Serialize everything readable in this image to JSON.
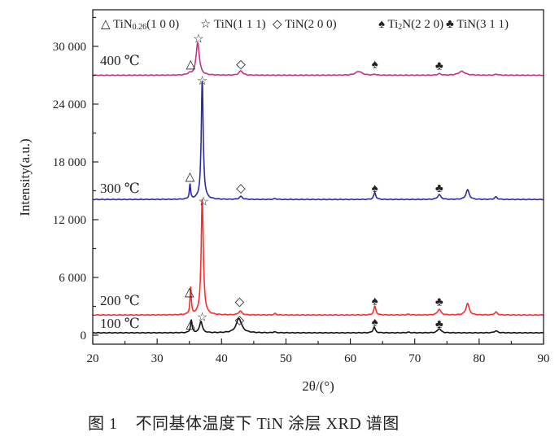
{
  "chart_data": {
    "type": "line",
    "title": "",
    "xlabel": "2θ/(°)",
    "ylabel": "Intensity(a.u.)",
    "xlim": [
      20,
      90
    ],
    "ylim": [
      -930,
      33800
    ],
    "x_ticks": [
      20,
      30,
      40,
      50,
      60,
      70,
      80,
      90
    ],
    "x_tick_labels": [
      "20",
      "30",
      "40",
      "50",
      "60",
      "70",
      "80",
      "90"
    ],
    "y_ticks": [
      0,
      6000,
      12000,
      18000,
      24000,
      30000
    ],
    "y_tick_labels": [
      "0",
      "6 000",
      "12 000",
      "18 000",
      "24 000",
      "30 000"
    ],
    "grid": false,
    "legend_position": "top",
    "legend": [
      {
        "symbol": "△",
        "label": "TiN",
        "sub": "0.26",
        "suffix": "(1 0 0)"
      },
      {
        "symbol": "☆",
        "label": "TiN(1 1 1)",
        "sub": "",
        "suffix": ""
      },
      {
        "symbol": "◇",
        "label": "TiN(2 0 0)",
        "sub": "",
        "suffix": ""
      },
      {
        "symbol": "♠",
        "label": "Ti",
        "sub": "2",
        "suffix": "N(2 2 0)"
      },
      {
        "symbol": "♣",
        "label": "TiN(3 1 1)",
        "sub": "",
        "suffix": ""
      }
    ],
    "series": [
      {
        "name": "100 ℃",
        "color": "#111111",
        "baseline": 250,
        "peaks": [
          [
            35.3,
            1300,
            0.15
          ],
          [
            36.8,
            1200,
            0.25
          ],
          [
            42.7,
            1500,
            0.5
          ],
          [
            48.2,
            100,
            0.2
          ],
          [
            63.7,
            600,
            0.2
          ],
          [
            69.0,
            60,
            0.3
          ],
          [
            73.8,
            450,
            0.3
          ],
          [
            82.6,
            200,
            0.3
          ]
        ],
        "markers": [
          [
            "△",
            35.2,
            1200
          ],
          [
            "☆",
            37.0,
            1900
          ],
          [
            "◇",
            42.8,
            1600
          ],
          [
            "♠",
            63.8,
            1400
          ],
          [
            "♣",
            73.8,
            1200
          ]
        ]
      },
      {
        "name": "200 ℃",
        "color": "#ff2a2a",
        "baseline": 2100,
        "peaks": [
          [
            35.2,
            2800,
            0.12
          ],
          [
            37.0,
            12000,
            0.2
          ],
          [
            42.9,
            400,
            0.3
          ],
          [
            48.3,
            150,
            0.2
          ],
          [
            63.8,
            900,
            0.2
          ],
          [
            69.0,
            80,
            0.3
          ],
          [
            73.8,
            600,
            0.3
          ],
          [
            78.2,
            1200,
            0.3
          ],
          [
            82.6,
            300,
            0.25
          ]
        ],
        "markers": [
          [
            "△",
            35.0,
            4500
          ],
          [
            "☆",
            37.2,
            13900
          ],
          [
            "◇",
            42.8,
            3500
          ],
          [
            "♠",
            63.8,
            3600
          ],
          [
            "♣",
            73.8,
            3500
          ]
        ]
      },
      {
        "name": "300 ℃",
        "color": "#2a2aa8",
        "baseline": 14100,
        "peaks": [
          [
            35.1,
            1500,
            0.12
          ],
          [
            37.0,
            12300,
            0.18
          ],
          [
            43.0,
            300,
            0.3
          ],
          [
            48.3,
            100,
            0.2
          ],
          [
            63.8,
            700,
            0.2
          ],
          [
            73.8,
            500,
            0.3
          ],
          [
            78.2,
            1000,
            0.3
          ],
          [
            82.6,
            250,
            0.25
          ]
        ],
        "markers": [
          [
            "△",
            35.1,
            16500
          ],
          [
            "☆",
            37.0,
            26450
          ],
          [
            "◇",
            43.0,
            15300
          ],
          [
            "♠",
            63.8,
            15300
          ],
          [
            "♣",
            73.8,
            15300
          ]
        ]
      },
      {
        "name": "400 ℃",
        "color": "#c2308c",
        "baseline": 27000,
        "peaks": [
          [
            35.0,
            150,
            0.3
          ],
          [
            36.3,
            3400,
            0.3
          ],
          [
            43.0,
            450,
            0.35
          ],
          [
            61.3,
            400,
            0.6
          ],
          [
            63.8,
            100,
            0.2
          ],
          [
            73.8,
            150,
            0.3
          ],
          [
            77.3,
            400,
            0.6
          ],
          [
            82.7,
            100,
            0.3
          ]
        ],
        "markers": [
          [
            "△",
            35.2,
            28200
          ],
          [
            "☆",
            36.4,
            30800
          ],
          [
            "◇",
            43.0,
            28200
          ],
          [
            "♠",
            63.8,
            28200
          ],
          [
            "♣",
            73.8,
            28000
          ]
        ]
      }
    ]
  },
  "caption": "图 1    不同基体温度下 TiN 涂层 XRD 谱图"
}
